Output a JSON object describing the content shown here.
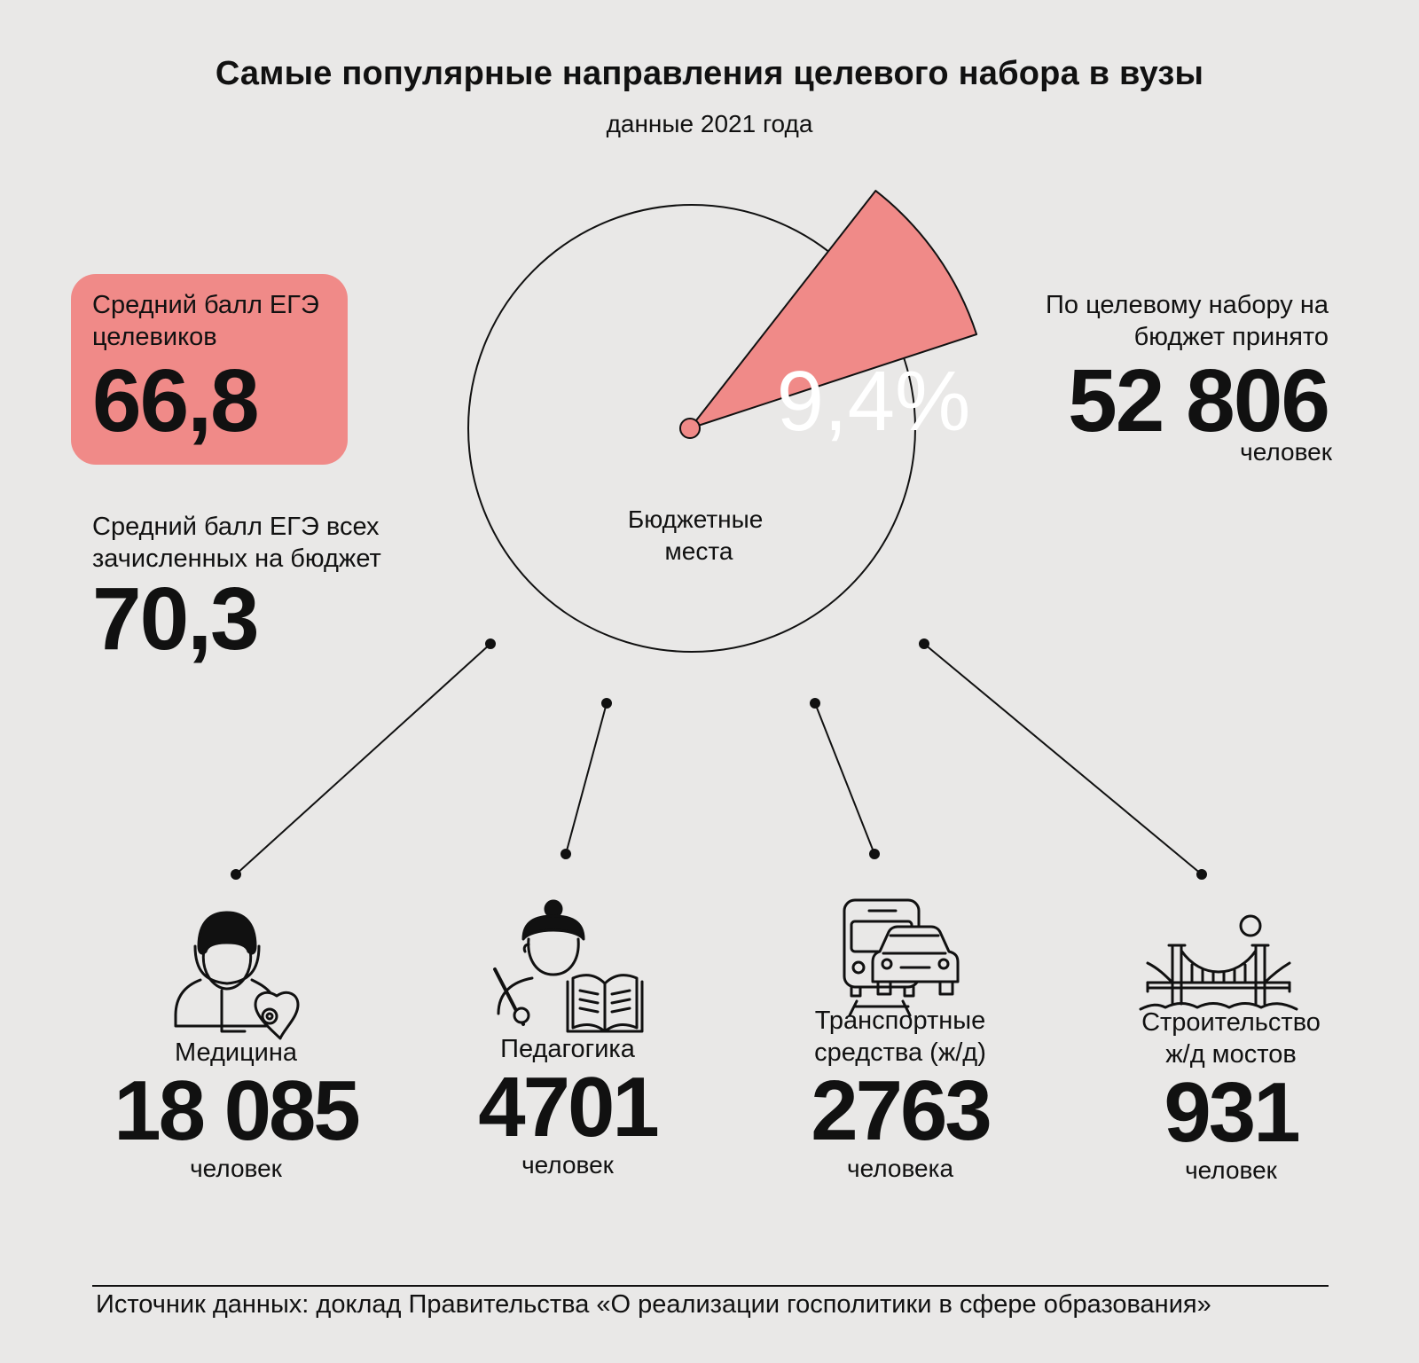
{
  "title": "Самые популярные направления целевого набора в вузы",
  "subtitle": "данные 2021 года",
  "target_score": {
    "label": "Средний балл ЕГЭ целевиков",
    "value": "66,8"
  },
  "all_score": {
    "label": "Средний балл ЕГЭ всех зачисленных на бюджет",
    "value": "70,3"
  },
  "admitted": {
    "label": "По целевому набору на бюджет принято",
    "value": "52 806",
    "unit": "человек"
  },
  "pie_center_label": "Бюджетные места",
  "categories": [
    {
      "label": "Медицина",
      "value": "18 085",
      "unit": "человек",
      "icon": "doctor-heart-icon"
    },
    {
      "label": "Педагогика",
      "value": "4701",
      "unit": "человек",
      "icon": "teacher-book-icon"
    },
    {
      "label": "Транспортные средства (ж/д)",
      "value": "2763",
      "unit": "человека",
      "icon": "train-car-icon"
    },
    {
      "label": "Строительство ж/д мостов",
      "value": "931",
      "unit": "человек",
      "icon": "bridge-icon"
    }
  ],
  "source": "Источник данных: доклад Правительства «О реализации госполитики в сфере образования»",
  "colors": {
    "accent": "#f08a88",
    "background": "#e9e8e7",
    "ink": "#111111"
  },
  "chart_data": {
    "type": "pie",
    "title": "Самые популярные направления целевого набора в вузы",
    "slices": [
      {
        "label": "",
        "value": 9.4,
        "display": "9,4%"
      },
      {
        "label": "Бюджетные места",
        "value": 90.6
      }
    ]
  }
}
